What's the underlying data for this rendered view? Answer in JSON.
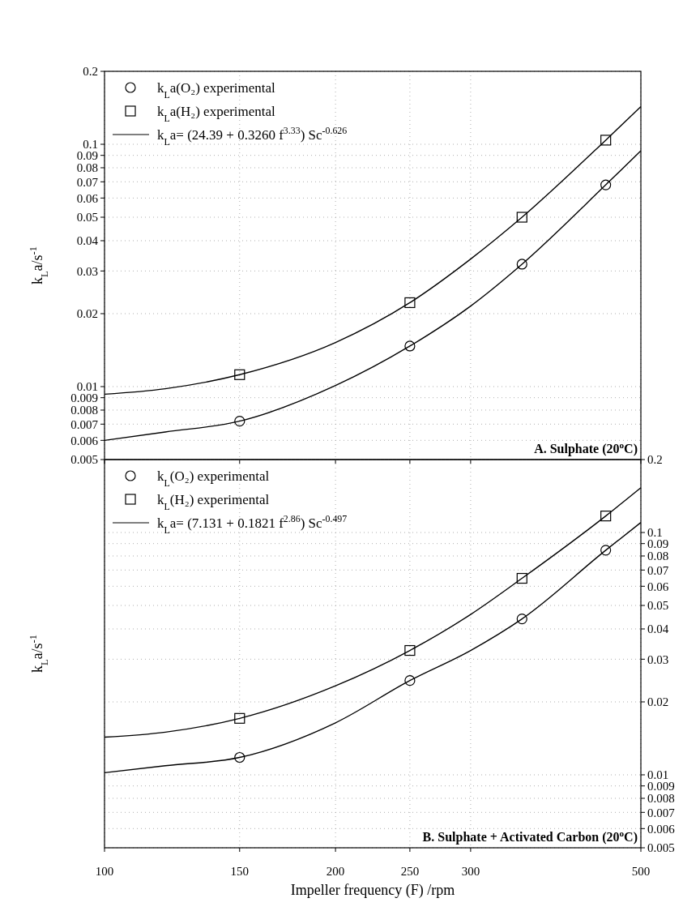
{
  "chart_data": [
    {
      "type": "scatter",
      "xlim": [
        100,
        500
      ],
      "xticks": [
        100,
        150,
        200,
        250,
        300,
        500
      ],
      "ylim": [
        0.005,
        0.2
      ],
      "yticks": [
        0.005,
        0.006,
        0.007,
        0.008,
        0.009,
        0.01,
        0.02,
        0.03,
        0.04,
        0.05,
        0.06,
        0.07,
        0.08,
        0.09,
        0.1,
        0.2
      ],
      "log": "xy",
      "grid": true,
      "legend": "top left",
      "tick_labels": "y",
      "ylabel": "k$_{L}$a/s$^{-1}$",
      "annotations": [
        "A. Sulphate (20$^{o}$C)"
      ],
      "series": [
        {
          "name": "k$_{L}$a(O₂) experimental",
          "marker": "circle",
          "color": "#000000",
          "x": [
            150,
            250,
            350,
            450
          ],
          "values": [
            0.0072,
            0.0147,
            0.032,
            0.068
          ]
        },
        {
          "name": "k$_{L}$a(H₂) experimental",
          "marker": "square",
          "color": "#000000",
          "x": [
            150,
            250,
            350,
            450
          ],
          "values": [
            0.0112,
            0.0222,
            0.05,
            0.104
          ]
        },
        {
          "name": "k$_{L}$a= (24.39 + 0.3260  f$^{3.33}$) Sc$^{-0.626}$",
          "type": "line",
          "marker": "none",
          "color": "#000000",
          "x": [
            100,
            120,
            150,
            200,
            250,
            300,
            350,
            450,
            500
          ],
          "values": [
            0.0093,
            0.0098,
            0.0112,
            0.0152,
            0.0222,
            0.0336,
            0.05,
            0.104,
            0.143
          ]
        },
        {
          "type": "line",
          "marker": "none",
          "color": "#000000",
          "x": [
            100,
            120,
            150,
            200,
            250,
            300,
            350,
            450,
            500
          ],
          "values": [
            0.006,
            0.0065,
            0.0072,
            0.0101,
            0.0147,
            0.0215,
            0.032,
            0.068,
            0.094
          ]
        }
      ]
    },
    {
      "type": "scatter",
      "xlim": [
        100,
        500
      ],
      "xticks": [
        100,
        150,
        200,
        250,
        300,
        500
      ],
      "xlabel": "Impeller frequency (F) /rpm",
      "ylim": [
        0.005,
        0.2
      ],
      "yticks": [
        0.005,
        0.006,
        0.007,
        0.008,
        0.009,
        0.01,
        0.02,
        0.03,
        0.04,
        0.05,
        0.06,
        0.07,
        0.08,
        0.09,
        0.1,
        0.2
      ],
      "log": "xy",
      "grid": true,
      "legend": "top left",
      "ylabel": "k$_{L}$a/s$^{-1}$",
      "annotations": [
        "B. Sulphate + Activated Carbon (20$^{o}$C)"
      ],
      "series": [
        {
          "name": "k$_{L}$(O₂) experimental",
          "marker": "circle",
          "color": "#000000",
          "x": [
            150,
            250,
            350,
            450
          ],
          "values": [
            0.0118,
            0.0245,
            0.044,
            0.0845
          ]
        },
        {
          "name": "k$_{L}$(H₂) experimental",
          "marker": "square",
          "color": "#000000",
          "x": [
            150,
            250,
            350,
            450
          ],
          "values": [
            0.0171,
            0.0326,
            0.0647,
            0.117
          ]
        },
        {
          "name": "k$_{L}$a= (7.131 + 0.1821  f$^{2.86}$) Sc$^{-0.497}$",
          "type": "line",
          "marker": "none",
          "color": "#000000",
          "x": [
            100,
            120,
            150,
            200,
            250,
            300,
            350,
            450,
            500
          ],
          "values": [
            0.0143,
            0.015,
            0.0171,
            0.0233,
            0.0326,
            0.0459,
            0.0647,
            0.117,
            0.153
          ]
        },
        {
          "type": "line",
          "marker": "none",
          "color": "#000000",
          "x": [
            100,
            120,
            150,
            200,
            250,
            300,
            350,
            450,
            500
          ],
          "values": [
            0.0102,
            0.0109,
            0.0118,
            0.0164,
            0.0245,
            0.0326,
            0.044,
            0.0845,
            0.11
          ]
        }
      ]
    }
  ]
}
